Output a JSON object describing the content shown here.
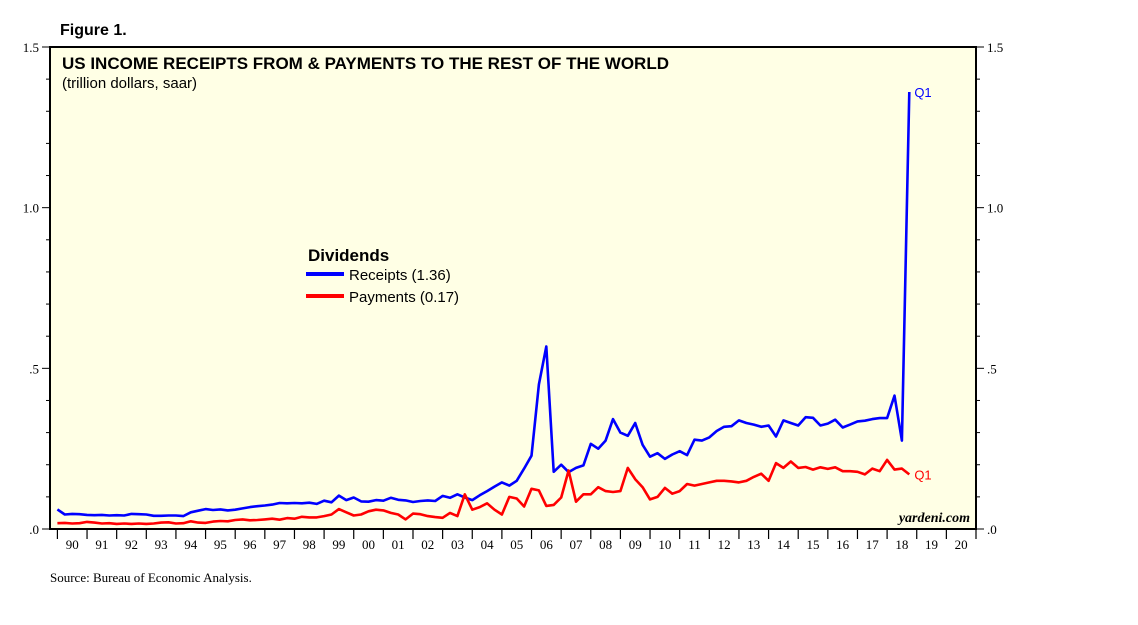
{
  "figure_label": "Figure 1.",
  "source": "Source: Bureau of Economic Analysis.",
  "watermark": "yardeni.com",
  "chart_data": {
    "type": "line",
    "title": "US INCOME RECEIPTS FROM & PAYMENTS TO THE REST OF THE WORLD",
    "subtitle": "(trillion dollars, saar)",
    "legend_title": "Dividends",
    "legend_placement": "center-left",
    "background_color": "#ffffe5",
    "ylim": [
      0,
      1.5
    ],
    "xlim": [
      1989.75,
      2021.0
    ],
    "y_ticks": [
      {
        "value": 0.0,
        "label": ".0"
      },
      {
        "value": 0.5,
        "label": ".5"
      },
      {
        "value": 1.0,
        "label": "1.0"
      },
      {
        "value": 1.5,
        "label": "1.5"
      }
    ],
    "year_labels": [
      "90",
      "91",
      "92",
      "93",
      "94",
      "95",
      "96",
      "97",
      "98",
      "99",
      "00",
      "01",
      "02",
      "03",
      "04",
      "05",
      "06",
      "07",
      "08",
      "09",
      "10",
      "11",
      "12",
      "13",
      "14",
      "15",
      "16",
      "17",
      "18",
      "19",
      "20"
    ],
    "year_start": 1990,
    "end_label": "Q1",
    "series": [
      {
        "name": "Receipts (1.36)",
        "color": "#0000ff",
        "points": [
          [
            1990.0,
            0.061
          ],
          [
            1990.25,
            0.045
          ],
          [
            1990.5,
            0.047
          ],
          [
            1990.75,
            0.046
          ],
          [
            1991.0,
            0.044
          ],
          [
            1991.25,
            0.043
          ],
          [
            1991.5,
            0.044
          ],
          [
            1991.75,
            0.042
          ],
          [
            1992.0,
            0.043
          ],
          [
            1992.25,
            0.042
          ],
          [
            1992.5,
            0.047
          ],
          [
            1992.75,
            0.046
          ],
          [
            1993.0,
            0.045
          ],
          [
            1993.25,
            0.041
          ],
          [
            1993.5,
            0.041
          ],
          [
            1993.75,
            0.042
          ],
          [
            1994.0,
            0.042
          ],
          [
            1994.25,
            0.04
          ],
          [
            1994.5,
            0.052
          ],
          [
            1994.75,
            0.057
          ],
          [
            1995.0,
            0.062
          ],
          [
            1995.25,
            0.059
          ],
          [
            1995.5,
            0.061
          ],
          [
            1995.75,
            0.058
          ],
          [
            1996.0,
            0.06
          ],
          [
            1996.25,
            0.064
          ],
          [
            1996.5,
            0.068
          ],
          [
            1996.75,
            0.071
          ],
          [
            1997.0,
            0.073
          ],
          [
            1997.25,
            0.076
          ],
          [
            1997.5,
            0.081
          ],
          [
            1997.75,
            0.08
          ],
          [
            1998.0,
            0.081
          ],
          [
            1998.25,
            0.08
          ],
          [
            1998.5,
            0.082
          ],
          [
            1998.75,
            0.078
          ],
          [
            1999.0,
            0.088
          ],
          [
            1999.25,
            0.083
          ],
          [
            1999.5,
            0.104
          ],
          [
            1999.75,
            0.09
          ],
          [
            2000.0,
            0.098
          ],
          [
            2000.25,
            0.086
          ],
          [
            2000.5,
            0.085
          ],
          [
            2000.75,
            0.09
          ],
          [
            2001.0,
            0.088
          ],
          [
            2001.25,
            0.097
          ],
          [
            2001.5,
            0.091
          ],
          [
            2001.75,
            0.089
          ],
          [
            2002.0,
            0.084
          ],
          [
            2002.25,
            0.087
          ],
          [
            2002.5,
            0.089
          ],
          [
            2002.75,
            0.087
          ],
          [
            2003.0,
            0.103
          ],
          [
            2003.25,
            0.097
          ],
          [
            2003.5,
            0.108
          ],
          [
            2003.75,
            0.098
          ],
          [
            2004.0,
            0.09
          ],
          [
            2004.25,
            0.105
          ],
          [
            2004.5,
            0.118
          ],
          [
            2004.75,
            0.132
          ],
          [
            2005.0,
            0.145
          ],
          [
            2005.25,
            0.135
          ],
          [
            2005.5,
            0.15
          ],
          [
            2005.75,
            0.188
          ],
          [
            2006.0,
            0.228
          ],
          [
            2006.25,
            0.45
          ],
          [
            2006.5,
            0.568
          ],
          [
            2006.75,
            0.178
          ],
          [
            2007.0,
            0.2
          ],
          [
            2007.25,
            0.177
          ],
          [
            2007.5,
            0.19
          ],
          [
            2007.75,
            0.198
          ],
          [
            2008.0,
            0.265
          ],
          [
            2008.25,
            0.25
          ],
          [
            2008.5,
            0.275
          ],
          [
            2008.75,
            0.342
          ],
          [
            2009.0,
            0.3
          ],
          [
            2009.25,
            0.29
          ],
          [
            2009.5,
            0.33
          ],
          [
            2009.75,
            0.262
          ],
          [
            2010.0,
            0.225
          ],
          [
            2010.25,
            0.236
          ],
          [
            2010.5,
            0.218
          ],
          [
            2010.75,
            0.232
          ],
          [
            2011.0,
            0.242
          ],
          [
            2011.25,
            0.23
          ],
          [
            2011.5,
            0.278
          ],
          [
            2011.75,
            0.275
          ],
          [
            2012.0,
            0.285
          ],
          [
            2012.25,
            0.305
          ],
          [
            2012.5,
            0.318
          ],
          [
            2012.75,
            0.32
          ],
          [
            2013.0,
            0.338
          ],
          [
            2013.25,
            0.33
          ],
          [
            2013.5,
            0.325
          ],
          [
            2013.75,
            0.318
          ],
          [
            2014.0,
            0.322
          ],
          [
            2014.25,
            0.288
          ],
          [
            2014.5,
            0.338
          ],
          [
            2014.75,
            0.33
          ],
          [
            2015.0,
            0.322
          ],
          [
            2015.25,
            0.348
          ],
          [
            2015.5,
            0.346
          ],
          [
            2015.75,
            0.322
          ],
          [
            2016.0,
            0.328
          ],
          [
            2016.25,
            0.34
          ],
          [
            2016.5,
            0.316
          ],
          [
            2016.75,
            0.325
          ],
          [
            2017.0,
            0.335
          ],
          [
            2017.25,
            0.337
          ],
          [
            2017.5,
            0.342
          ],
          [
            2017.75,
            0.345
          ],
          [
            2018.0,
            0.345
          ],
          [
            2018.25,
            0.415
          ],
          [
            2018.5,
            0.275
          ],
          [
            2018.75,
            1.36
          ]
        ]
      },
      {
        "name": "Payments (0.17)",
        "color": "#ff0000",
        "points": [
          [
            1990.0,
            0.018
          ],
          [
            1990.25,
            0.019
          ],
          [
            1990.5,
            0.017
          ],
          [
            1990.75,
            0.018
          ],
          [
            1991.0,
            0.022
          ],
          [
            1991.25,
            0.02
          ],
          [
            1991.5,
            0.017
          ],
          [
            1991.75,
            0.018
          ],
          [
            1992.0,
            0.016
          ],
          [
            1992.25,
            0.017
          ],
          [
            1992.5,
            0.016
          ],
          [
            1992.75,
            0.017
          ],
          [
            1993.0,
            0.016
          ],
          [
            1993.25,
            0.017
          ],
          [
            1993.5,
            0.02
          ],
          [
            1993.75,
            0.021
          ],
          [
            1994.0,
            0.017
          ],
          [
            1994.25,
            0.018
          ],
          [
            1994.5,
            0.024
          ],
          [
            1994.75,
            0.02
          ],
          [
            1995.0,
            0.019
          ],
          [
            1995.25,
            0.023
          ],
          [
            1995.5,
            0.025
          ],
          [
            1995.75,
            0.024
          ],
          [
            1996.0,
            0.028
          ],
          [
            1996.25,
            0.03
          ],
          [
            1996.5,
            0.027
          ],
          [
            1996.75,
            0.028
          ],
          [
            1997.0,
            0.03
          ],
          [
            1997.25,
            0.032
          ],
          [
            1997.5,
            0.029
          ],
          [
            1997.75,
            0.034
          ],
          [
            1998.0,
            0.032
          ],
          [
            1998.25,
            0.038
          ],
          [
            1998.5,
            0.036
          ],
          [
            1998.75,
            0.036
          ],
          [
            1999.0,
            0.04
          ],
          [
            1999.25,
            0.045
          ],
          [
            1999.5,
            0.062
          ],
          [
            1999.75,
            0.052
          ],
          [
            2000.0,
            0.042
          ],
          [
            2000.25,
            0.045
          ],
          [
            2000.5,
            0.055
          ],
          [
            2000.75,
            0.06
          ],
          [
            2001.0,
            0.058
          ],
          [
            2001.25,
            0.05
          ],
          [
            2001.5,
            0.045
          ],
          [
            2001.75,
            0.03
          ],
          [
            2002.0,
            0.048
          ],
          [
            2002.25,
            0.046
          ],
          [
            2002.5,
            0.04
          ],
          [
            2002.75,
            0.037
          ],
          [
            2003.0,
            0.035
          ],
          [
            2003.25,
            0.05
          ],
          [
            2003.5,
            0.04
          ],
          [
            2003.75,
            0.108
          ],
          [
            2004.0,
            0.06
          ],
          [
            2004.25,
            0.068
          ],
          [
            2004.5,
            0.08
          ],
          [
            2004.75,
            0.06
          ],
          [
            2005.0,
            0.045
          ],
          [
            2005.25,
            0.1
          ],
          [
            2005.5,
            0.095
          ],
          [
            2005.75,
            0.07
          ],
          [
            2006.0,
            0.125
          ],
          [
            2006.25,
            0.12
          ],
          [
            2006.5,
            0.072
          ],
          [
            2006.75,
            0.075
          ],
          [
            2007.0,
            0.098
          ],
          [
            2007.25,
            0.182
          ],
          [
            2007.5,
            0.085
          ],
          [
            2007.75,
            0.108
          ],
          [
            2008.0,
            0.108
          ],
          [
            2008.25,
            0.13
          ],
          [
            2008.5,
            0.118
          ],
          [
            2008.75,
            0.115
          ],
          [
            2009.0,
            0.118
          ],
          [
            2009.25,
            0.19
          ],
          [
            2009.5,
            0.155
          ],
          [
            2009.75,
            0.13
          ],
          [
            2010.0,
            0.092
          ],
          [
            2010.25,
            0.1
          ],
          [
            2010.5,
            0.128
          ],
          [
            2010.75,
            0.11
          ],
          [
            2011.0,
            0.118
          ],
          [
            2011.25,
            0.14
          ],
          [
            2011.5,
            0.135
          ],
          [
            2011.75,
            0.14
          ],
          [
            2012.0,
            0.145
          ],
          [
            2012.25,
            0.15
          ],
          [
            2012.5,
            0.15
          ],
          [
            2012.75,
            0.148
          ],
          [
            2013.0,
            0.145
          ],
          [
            2013.25,
            0.15
          ],
          [
            2013.5,
            0.162
          ],
          [
            2013.75,
            0.172
          ],
          [
            2014.0,
            0.15
          ],
          [
            2014.25,
            0.205
          ],
          [
            2014.5,
            0.19
          ],
          [
            2014.75,
            0.21
          ],
          [
            2015.0,
            0.19
          ],
          [
            2015.25,
            0.193
          ],
          [
            2015.5,
            0.185
          ],
          [
            2015.75,
            0.192
          ],
          [
            2016.0,
            0.187
          ],
          [
            2016.25,
            0.192
          ],
          [
            2016.5,
            0.18
          ],
          [
            2016.75,
            0.18
          ],
          [
            2017.0,
            0.178
          ],
          [
            2017.25,
            0.17
          ],
          [
            2017.5,
            0.188
          ],
          [
            2017.75,
            0.18
          ],
          [
            2018.0,
            0.215
          ],
          [
            2018.25,
            0.185
          ],
          [
            2018.5,
            0.188
          ],
          [
            2018.75,
            0.17
          ]
        ]
      }
    ]
  }
}
